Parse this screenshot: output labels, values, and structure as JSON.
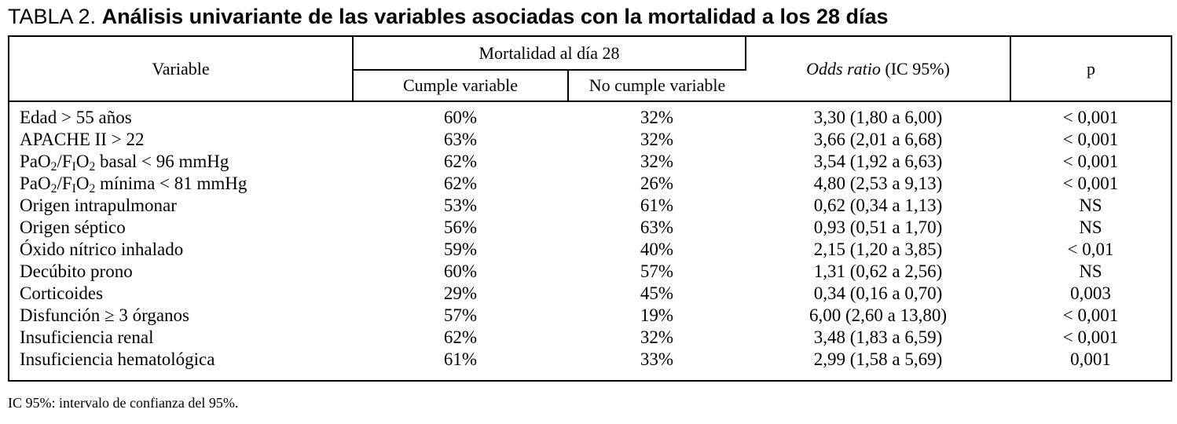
{
  "title": {
    "prefix": "TABLA 2.",
    "text": "Análisis univariante de las variables asociadas con la mortalidad a los 28 días"
  },
  "table": {
    "headers": {
      "variable": "Variable",
      "mortality_group": "Mortalidad al día 28",
      "cumple": "Cumple variable",
      "no_cumple": "No cumple variable",
      "odds_ratio_italic": "Odds ratio",
      "odds_ratio_rest": " (IC 95%)",
      "p": "p"
    },
    "rows": [
      {
        "variable": [
          "Edad > 55 años"
        ],
        "cumple": "60%",
        "no_cumple": "32%",
        "odds_ratio": "3,30 (1,80 a 6,00)",
        "p": "< 0,001"
      },
      {
        "variable": [
          "APACHE II > 22"
        ],
        "cumple": "63%",
        "no_cumple": "32%",
        "odds_ratio": "3,66 (2,01 a 6,68)",
        "p": "< 0,001"
      },
      {
        "variable": [
          "PaO",
          {
            "sub": "2"
          },
          "/F",
          {
            "sub": "I"
          },
          "O",
          {
            "sub": "2"
          },
          " basal < 96 mmHg"
        ],
        "cumple": "62%",
        "no_cumple": "32%",
        "odds_ratio": "3,54 (1,92 a 6,63)",
        "p": "< 0,001"
      },
      {
        "variable": [
          "PaO",
          {
            "sub": "2"
          },
          "/F",
          {
            "sub": "I"
          },
          "O",
          {
            "sub": "2"
          },
          " mínima < 81 mmHg"
        ],
        "cumple": "62%",
        "no_cumple": "26%",
        "odds_ratio": "4,80 (2,53 a 9,13)",
        "p": "< 0,001"
      },
      {
        "variable": [
          "Origen intrapulmonar"
        ],
        "cumple": "53%",
        "no_cumple": "61%",
        "odds_ratio": "0,62 (0,34 a 1,13)",
        "p": "NS"
      },
      {
        "variable": [
          "Origen séptico"
        ],
        "cumple": "56%",
        "no_cumple": "63%",
        "odds_ratio": "0,93 (0,51 a 1,70)",
        "p": "NS"
      },
      {
        "variable": [
          "Óxido nítrico inhalado"
        ],
        "cumple": "59%",
        "no_cumple": "40%",
        "odds_ratio": "2,15 (1,20 a 3,85)",
        "p": "< 0,01"
      },
      {
        "variable": [
          "Decúbito prono"
        ],
        "cumple": "60%",
        "no_cumple": "57%",
        "odds_ratio": "1,31 (0,62 a 2,56)",
        "p": "NS"
      },
      {
        "variable": [
          "Corticoides"
        ],
        "cumple": "29%",
        "no_cumple": "45%",
        "odds_ratio": "0,34 (0,16 a 0,70)",
        "p": "0,003"
      },
      {
        "variable": [
          "Disfunción ≥ 3 órganos"
        ],
        "cumple": "57%",
        "no_cumple": "19%",
        "odds_ratio": "6,00 (2,60 a 13,80)",
        "p": "< 0,001"
      },
      {
        "variable": [
          "Insuficiencia renal"
        ],
        "cumple": "62%",
        "no_cumple": "32%",
        "odds_ratio": "3,48 (1,83 a 6,59)",
        "p": "< 0,001"
      },
      {
        "variable": [
          "Insuficiencia hematológica"
        ],
        "cumple": "61%",
        "no_cumple": "33%",
        "odds_ratio": "2,99 (1,58 a 5,69)",
        "p": "0,001"
      }
    ]
  },
  "footnote": "IC 95%: intervalo de confianza del 95%."
}
